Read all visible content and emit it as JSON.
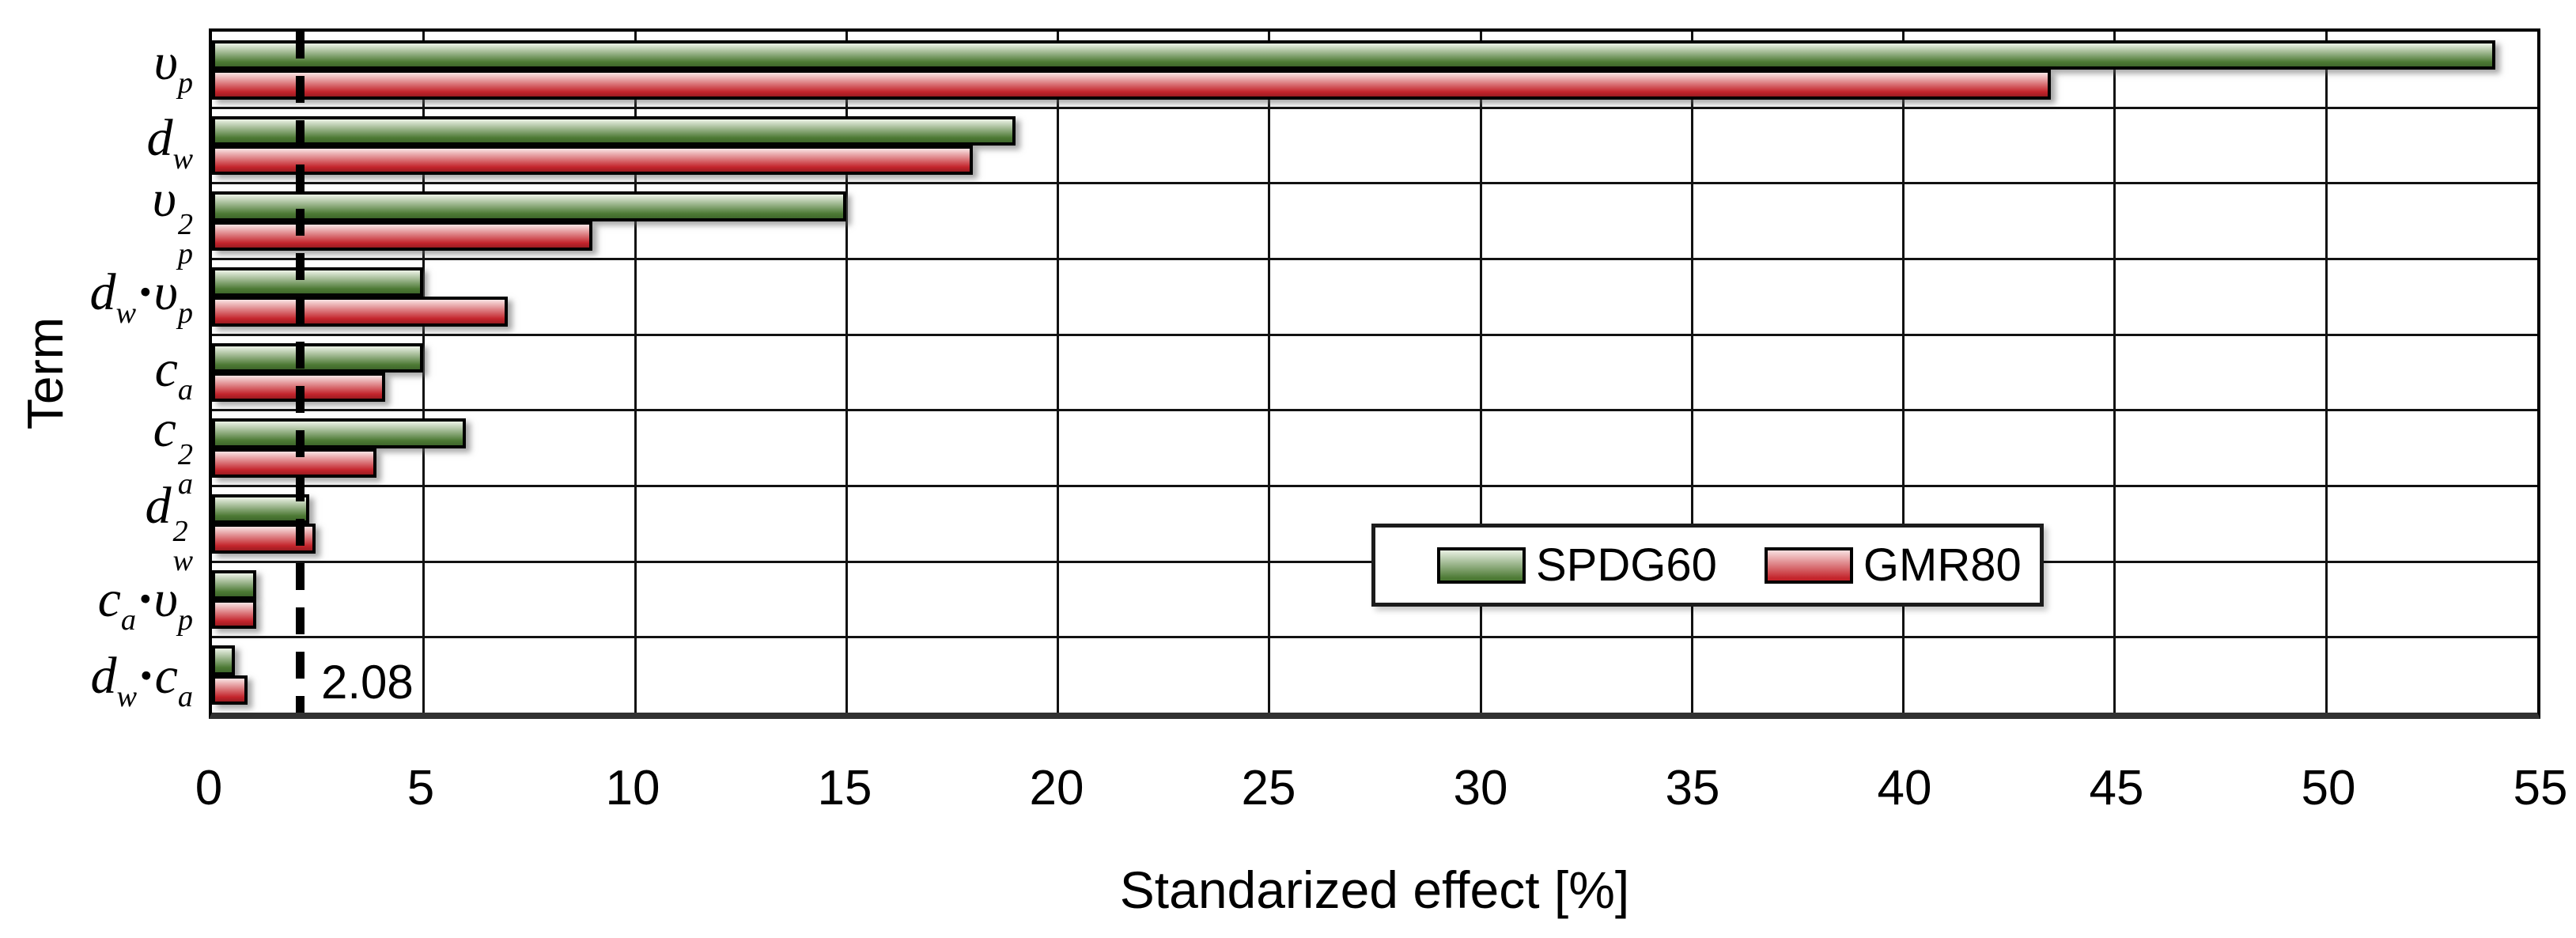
{
  "chart_data": {
    "type": "bar",
    "orientation": "horizontal",
    "xlabel": "Standarized effect [%]",
    "ylabel": "Term",
    "xlim": [
      0,
      55
    ],
    "xticks": [
      0,
      5,
      10,
      15,
      20,
      25,
      30,
      35,
      40,
      45,
      50,
      55
    ],
    "grid": true,
    "legend_position": "inside-lower-right",
    "categories": [
      {
        "name": "υp",
        "parts": [
          {
            "t": "υ"
          },
          {
            "sub": "p"
          }
        ]
      },
      {
        "name": "dw",
        "parts": [
          {
            "t": "d"
          },
          {
            "sub": "w"
          }
        ]
      },
      {
        "name": "υp2",
        "parts": [
          {
            "t": "υ"
          },
          {
            "sup": "2",
            "sub": "p"
          }
        ]
      },
      {
        "name": "dw·υp",
        "parts": [
          {
            "t": "d"
          },
          {
            "sub": "w"
          },
          {
            "t": "·"
          },
          {
            "t": "υ"
          },
          {
            "sub": "p"
          }
        ]
      },
      {
        "name": "ca",
        "parts": [
          {
            "t": "c"
          },
          {
            "sub": "a"
          }
        ]
      },
      {
        "name": "ca2",
        "parts": [
          {
            "t": "c"
          },
          {
            "sup": "2",
            "sub": "a"
          }
        ]
      },
      {
        "name": "dw2",
        "parts": [
          {
            "t": "d"
          },
          {
            "sup": "2",
            "sub": "w"
          }
        ]
      },
      {
        "name": "ca·υp",
        "parts": [
          {
            "t": "c"
          },
          {
            "sub": "a"
          },
          {
            "t": "·"
          },
          {
            "t": "υ"
          },
          {
            "sub": "p"
          }
        ]
      },
      {
        "name": "dw·ca",
        "parts": [
          {
            "t": "d"
          },
          {
            "sub": "w"
          },
          {
            "t": "·"
          },
          {
            "t": "c"
          },
          {
            "sub": "a"
          }
        ]
      }
    ],
    "series": [
      {
        "name": "SPDG60",
        "colors": {
          "light": "#e9f0e3",
          "dark": "#4d7a35",
          "deep": "#3f672b"
        },
        "values": [
          54,
          19,
          15,
          5,
          5,
          6,
          2.3,
          1.05,
          0.55
        ]
      },
      {
        "name": "GMR80",
        "colors": {
          "light": "#f8e0e0",
          "dark": "#c4252c",
          "deep": "#9c1b21"
        },
        "values": [
          43.5,
          18,
          9,
          7,
          4.1,
          3.9,
          2.45,
          1.05,
          0.85
        ]
      }
    ],
    "reference_line": {
      "value": 2.08,
      "label": "2.08",
      "style": "dashed"
    }
  }
}
